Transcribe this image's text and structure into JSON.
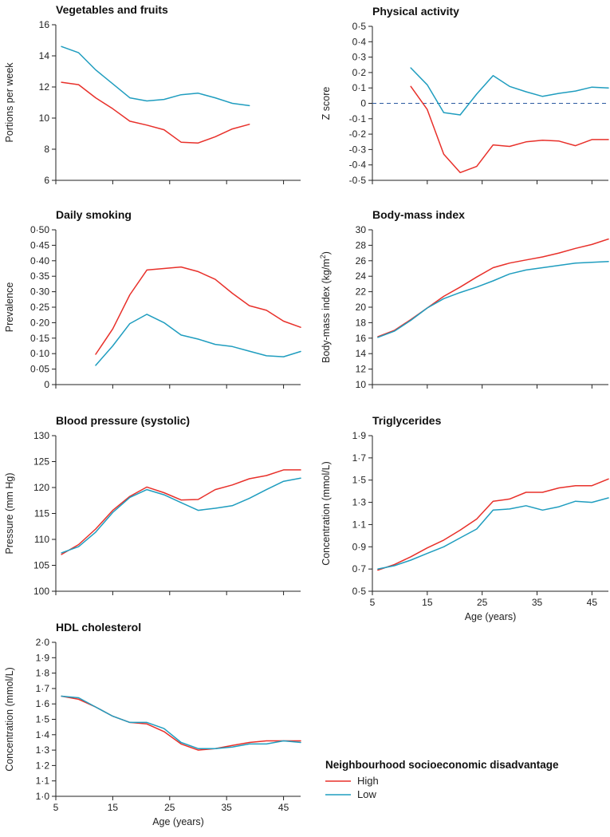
{
  "colors": {
    "high": "#e8302a",
    "low": "#1f9dbf",
    "axis": "#222222",
    "zero_line": "#2a5aa0"
  },
  "legend": {
    "title": "Neighbourhood socioeconomic disadvantage",
    "items": [
      {
        "key": "high",
        "label": "High"
      },
      {
        "key": "low",
        "label": "Low"
      }
    ]
  },
  "chart_data": [
    {
      "type": "line",
      "title": "Vegetables and fruits",
      "ylabel": "Portions per week",
      "xlabel": "",
      "xlim": [
        5,
        48
      ],
      "xticks": [
        5,
        15,
        25,
        35,
        45
      ],
      "xtick_labels": [],
      "ylim": [
        6,
        16
      ],
      "yticks": [
        6,
        8,
        10,
        12,
        14,
        16
      ],
      "ytick_labels": [
        "6",
        "8",
        "10",
        "12",
        "14",
        "16"
      ],
      "series": [
        {
          "name": "High",
          "key": "high",
          "x": [
            6,
            9,
            12,
            15,
            18,
            21,
            24,
            27,
            30,
            33,
            36,
            39
          ],
          "y": [
            12.3,
            12.15,
            11.3,
            10.6,
            9.8,
            9.55,
            9.25,
            8.45,
            8.4,
            8.8,
            9.3,
            9.6
          ]
        },
        {
          "name": "Low",
          "key": "low",
          "x": [
            6,
            9,
            12,
            15,
            18,
            21,
            24,
            27,
            30,
            33,
            36,
            39
          ],
          "y": [
            14.6,
            14.2,
            13.1,
            12.2,
            11.3,
            11.1,
            11.2,
            11.5,
            11.6,
            11.3,
            10.95,
            10.8
          ]
        }
      ]
    },
    {
      "type": "line",
      "title": "Physical activity",
      "ylabel": "Z score",
      "xlabel": "",
      "xlim": [
        5,
        48
      ],
      "xticks": [
        5,
        15,
        25,
        35,
        45
      ],
      "xtick_labels": [],
      "ylim": [
        -0.5,
        0.5
      ],
      "yticks": [
        -0.5,
        -0.4,
        -0.3,
        -0.2,
        -0.1,
        0,
        0.1,
        0.2,
        0.3,
        0.4,
        0.5
      ],
      "ytick_labels": [
        "-0·5",
        "-0·4",
        "-0·3",
        "-0·2",
        "-0·1",
        "0",
        "0·1",
        "0·2",
        "0·3",
        "0·4",
        "0·5"
      ],
      "reference_line": 0,
      "series": [
        {
          "name": "High",
          "key": "high",
          "x": [
            12,
            15,
            18,
            21,
            24,
            27,
            30,
            33,
            36,
            39,
            42,
            45,
            48
          ],
          "y": [
            0.11,
            -0.04,
            -0.33,
            -0.45,
            -0.41,
            -0.27,
            -0.28,
            -0.25,
            -0.24,
            -0.245,
            -0.275,
            -0.235,
            -0.235
          ]
        },
        {
          "name": "Low",
          "key": "low",
          "x": [
            12,
            15,
            18,
            21,
            24,
            27,
            30,
            33,
            36,
            39,
            42,
            45,
            48
          ],
          "y": [
            0.23,
            0.12,
            -0.06,
            -0.075,
            0.06,
            0.18,
            0.11,
            0.075,
            0.045,
            0.065,
            0.08,
            0.105,
            0.1
          ]
        }
      ]
    },
    {
      "type": "line",
      "title": "Daily smoking",
      "ylabel": "Prevalence",
      "xlabel": "",
      "xlim": [
        5,
        48
      ],
      "xticks": [
        5,
        15,
        25,
        35,
        45
      ],
      "xtick_labels": [],
      "ylim": [
        0,
        0.5
      ],
      "yticks": [
        0,
        0.05,
        0.1,
        0.15,
        0.2,
        0.25,
        0.3,
        0.35,
        0.4,
        0.45,
        0.5
      ],
      "ytick_labels": [
        "0",
        "0·05",
        "0·10",
        "0·15",
        "0·20",
        "0·25",
        "0·30",
        "0·35",
        "0·40",
        "0·45",
        "0·50"
      ],
      "series": [
        {
          "name": "High",
          "key": "high",
          "x": [
            12,
            15,
            18,
            21,
            24,
            27,
            30,
            33,
            36,
            39,
            42,
            45,
            48
          ],
          "y": [
            0.098,
            0.18,
            0.29,
            0.37,
            0.375,
            0.38,
            0.365,
            0.34,
            0.295,
            0.255,
            0.24,
            0.205,
            0.185
          ]
        },
        {
          "name": "Low",
          "key": "low",
          "x": [
            12,
            15,
            18,
            21,
            24,
            27,
            30,
            33,
            36,
            39,
            42,
            45,
            48
          ],
          "y": [
            0.062,
            0.125,
            0.197,
            0.227,
            0.2,
            0.16,
            0.147,
            0.13,
            0.123,
            0.108,
            0.093,
            0.09,
            0.107
          ]
        }
      ]
    },
    {
      "type": "line",
      "title": "Body-mass index",
      "ylabel": "Body-mass index (kg/m²)",
      "xlabel": "",
      "xlim": [
        5,
        48
      ],
      "xticks": [
        5,
        15,
        25,
        35,
        45
      ],
      "xtick_labels": [],
      "ylim": [
        10,
        30
      ],
      "yticks": [
        10,
        12,
        14,
        16,
        18,
        20,
        22,
        24,
        26,
        28,
        30
      ],
      "ytick_labels": [
        "10",
        "12",
        "14",
        "16",
        "18",
        "20",
        "22",
        "24",
        "26",
        "28",
        "30"
      ],
      "series": [
        {
          "name": "High",
          "key": "high",
          "x": [
            6,
            9,
            12,
            15,
            18,
            21,
            24,
            27,
            30,
            33,
            36,
            39,
            42,
            45,
            48
          ],
          "y": [
            16.2,
            17.0,
            18.4,
            19.9,
            21.4,
            22.6,
            23.9,
            25.1,
            25.7,
            26.1,
            26.5,
            27.0,
            27.6,
            28.1,
            28.8
          ]
        },
        {
          "name": "Low",
          "key": "low",
          "x": [
            6,
            9,
            12,
            15,
            18,
            21,
            24,
            27,
            30,
            33,
            36,
            39,
            42,
            45,
            48
          ],
          "y": [
            16.1,
            16.9,
            18.3,
            19.9,
            21.1,
            21.9,
            22.6,
            23.4,
            24.3,
            24.8,
            25.1,
            25.4,
            25.7,
            25.8,
            25.9
          ]
        }
      ]
    },
    {
      "type": "line",
      "title": "Blood pressure (systolic)",
      "ylabel": "Pressure (mm Hg)",
      "xlabel": "",
      "xlim": [
        5,
        48
      ],
      "xticks": [
        5,
        15,
        25,
        35,
        45
      ],
      "xtick_labels": [],
      "ylim": [
        100,
        130
      ],
      "yticks": [
        100,
        105,
        110,
        115,
        120,
        125,
        130
      ],
      "ytick_labels": [
        "100",
        "105",
        "110",
        "115",
        "120",
        "125",
        "130"
      ],
      "series": [
        {
          "name": "High",
          "key": "high",
          "x": [
            6,
            9,
            12,
            15,
            18,
            21,
            24,
            27,
            30,
            33,
            36,
            39,
            42,
            45,
            48
          ],
          "y": [
            107.1,
            109.0,
            112.0,
            115.6,
            118.3,
            120.1,
            119.0,
            117.6,
            117.7,
            119.6,
            120.5,
            121.7,
            122.3,
            123.4,
            123.4
          ]
        },
        {
          "name": "Low",
          "key": "low",
          "x": [
            6,
            9,
            12,
            15,
            18,
            21,
            24,
            27,
            30,
            33,
            36,
            39,
            42,
            45,
            48
          ],
          "y": [
            107.4,
            108.6,
            111.4,
            115.2,
            118.1,
            119.6,
            118.6,
            117.1,
            115.6,
            116.0,
            116.5,
            117.9,
            119.6,
            121.2,
            121.8
          ]
        }
      ]
    },
    {
      "type": "line",
      "title": "Triglycerides",
      "ylabel": "Concentration (mmol/L)",
      "xlabel": "Age (years)",
      "xlim": [
        5,
        48
      ],
      "xticks": [
        5,
        15,
        25,
        35,
        45
      ],
      "xtick_labels": [
        "5",
        "15",
        "25",
        "35",
        "45"
      ],
      "ylim": [
        0.5,
        1.9
      ],
      "yticks": [
        0.5,
        0.7,
        0.9,
        1.1,
        1.3,
        1.5,
        1.7,
        1.9
      ],
      "ytick_labels": [
        "0·5",
        "0·7",
        "0·9",
        "1·1",
        "1·3",
        "1·5",
        "1·7",
        "1·9"
      ],
      "series": [
        {
          "name": "High",
          "key": "high",
          "x": [
            6,
            9,
            12,
            15,
            18,
            21,
            24,
            27,
            30,
            33,
            36,
            39,
            42,
            45,
            48
          ],
          "y": [
            0.69,
            0.74,
            0.81,
            0.89,
            0.96,
            1.05,
            1.15,
            1.31,
            1.33,
            1.39,
            1.39,
            1.43,
            1.45,
            1.45,
            1.51
          ]
        },
        {
          "name": "Low",
          "key": "low",
          "x": [
            6,
            9,
            12,
            15,
            18,
            21,
            24,
            27,
            30,
            33,
            36,
            39,
            42,
            45,
            48
          ],
          "y": [
            0.7,
            0.73,
            0.78,
            0.84,
            0.9,
            0.98,
            1.06,
            1.23,
            1.24,
            1.27,
            1.23,
            1.26,
            1.31,
            1.3,
            1.34
          ]
        }
      ]
    },
    {
      "type": "line",
      "title": "HDL cholesterol",
      "ylabel": "Concentration (mmol/L)",
      "xlabel": "Age (years)",
      "xlim": [
        5,
        48
      ],
      "xticks": [
        5,
        15,
        25,
        35,
        45
      ],
      "xtick_labels": [
        "5",
        "15",
        "25",
        "35",
        "45"
      ],
      "ylim": [
        1.0,
        2.0
      ],
      "yticks": [
        1.0,
        1.1,
        1.2,
        1.3,
        1.4,
        1.5,
        1.6,
        1.7,
        1.8,
        1.9,
        2.0
      ],
      "ytick_labels": [
        "1·0",
        "1·1",
        "1·2",
        "1·3",
        "1·4",
        "1·5",
        "1·6",
        "1·7",
        "1·8",
        "1·9",
        "2·0"
      ],
      "series": [
        {
          "name": "High",
          "key": "high",
          "x": [
            6,
            9,
            12,
            15,
            18,
            21,
            24,
            27,
            30,
            33,
            36,
            39,
            42,
            45,
            48
          ],
          "y": [
            1.65,
            1.63,
            1.58,
            1.52,
            1.48,
            1.47,
            1.42,
            1.34,
            1.3,
            1.31,
            1.33,
            1.35,
            1.36,
            1.36,
            1.36
          ]
        },
        {
          "name": "Low",
          "key": "low",
          "x": [
            6,
            9,
            12,
            15,
            18,
            21,
            24,
            27,
            30,
            33,
            36,
            39,
            42,
            45,
            48
          ],
          "y": [
            1.65,
            1.64,
            1.58,
            1.52,
            1.48,
            1.48,
            1.44,
            1.35,
            1.31,
            1.31,
            1.32,
            1.34,
            1.34,
            1.36,
            1.35
          ]
        }
      ]
    }
  ]
}
